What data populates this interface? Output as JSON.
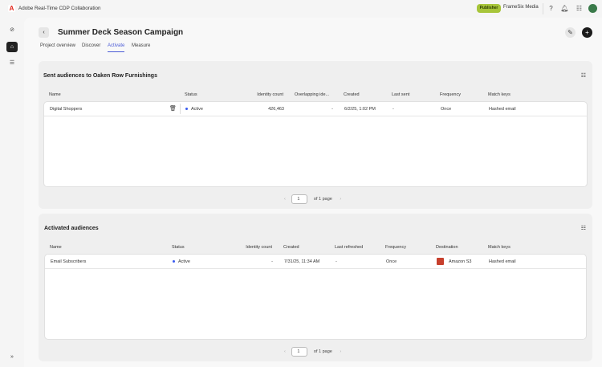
{
  "app": {
    "title": "Adobe Real-Time CDP Collaboration",
    "role_badge": "Publisher",
    "org": "FrameSix Media",
    "colors": {
      "accent": "#4b5bd6",
      "badge": "#a7c53a",
      "status_active": "#3a5bf0"
    }
  },
  "header": {
    "title": "Summer Deck Season Campaign"
  },
  "tabs": [
    {
      "label": "Project overview"
    },
    {
      "label": "Discover"
    },
    {
      "label": "Activate"
    },
    {
      "label": "Measure"
    }
  ],
  "sent": {
    "title": "Sent audiences to Oaken Row Furnishings",
    "columns": [
      "Name",
      "Status",
      "Identity count",
      "Overlapping ide...",
      "Created",
      "Last sent",
      "Frequency",
      "Match keys"
    ],
    "rows": [
      {
        "name": "Digital Shoppers",
        "status": "Active",
        "identity_count": "426,463",
        "overlapping": "-",
        "created": "6/2/25, 1:02 PM",
        "last_sent": "-",
        "frequency": "Once",
        "match_keys": "Hashed email"
      }
    ],
    "page": "1",
    "page_of": "of 1 page"
  },
  "activated": {
    "title": "Activated audiences",
    "columns": [
      "Name",
      "Status",
      "Identity count",
      "Created",
      "Last refreshed",
      "Frequency",
      "Destination",
      "Match keys"
    ],
    "rows": [
      {
        "name": "Email Subscribers",
        "status": "Active",
        "identity_count": "-",
        "created": "7/31/25, 11:34 AM",
        "last_refreshed": "-",
        "frequency": "Once",
        "destination": "Amazon S3",
        "match_keys": "Hashed email"
      }
    ],
    "page": "1",
    "page_of": "of 1 page"
  }
}
